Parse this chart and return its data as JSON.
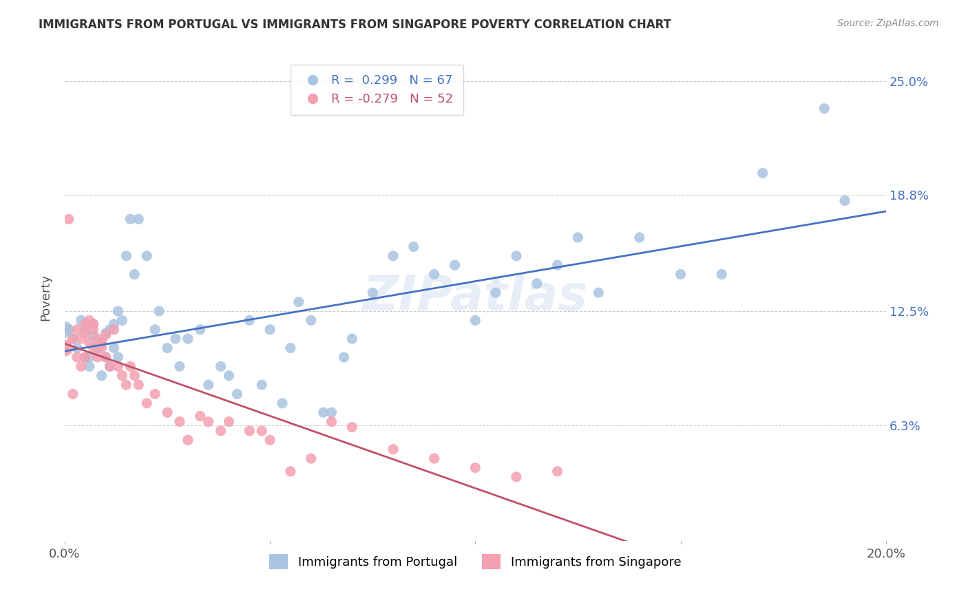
{
  "title": "IMMIGRANTS FROM PORTUGAL VS IMMIGRANTS FROM SINGAPORE POVERTY CORRELATION CHART",
  "source": "Source: ZipAtlas.com",
  "ylabel": "Poverty",
  "xlim": [
    0.0,
    0.2
  ],
  "ylim": [
    0.0,
    0.265
  ],
  "yticks": [
    0.063,
    0.125,
    0.188,
    0.25
  ],
  "ytick_labels": [
    "6.3%",
    "12.5%",
    "18.8%",
    "25.0%"
  ],
  "xticks": [
    0.0,
    0.05,
    0.1,
    0.15,
    0.2
  ],
  "xtick_labels": [
    "0.0%",
    "",
    "",
    "",
    "20.0%"
  ],
  "legend_r_portugal": "R =  0.299",
  "legend_n_portugal": "N = 67",
  "legend_r_singapore": "R = -0.279",
  "legend_n_singapore": "N = 52",
  "color_portugal": "#a8c4e0",
  "color_singapore": "#f4a0b0",
  "line_color_portugal": "#4472c4",
  "line_color_singapore": "#c0506a",
  "watermark": "ZIPatlas",
  "portugal_x": [
    0.0,
    0.002,
    0.003,
    0.004,
    0.005,
    0.005,
    0.006,
    0.006,
    0.007,
    0.007,
    0.008,
    0.009,
    0.009,
    0.01,
    0.01,
    0.011,
    0.011,
    0.012,
    0.012,
    0.013,
    0.013,
    0.014,
    0.015,
    0.016,
    0.017,
    0.018,
    0.02,
    0.022,
    0.023,
    0.025,
    0.027,
    0.028,
    0.03,
    0.033,
    0.035,
    0.038,
    0.04,
    0.042,
    0.045,
    0.048,
    0.05,
    0.053,
    0.055,
    0.057,
    0.06,
    0.063,
    0.065,
    0.068,
    0.07,
    0.075,
    0.08,
    0.085,
    0.09,
    0.095,
    0.1,
    0.105,
    0.11,
    0.115,
    0.12,
    0.125,
    0.13,
    0.14,
    0.15,
    0.16,
    0.17,
    0.185,
    0.19
  ],
  "portugal_y": [
    0.115,
    0.11,
    0.105,
    0.12,
    0.1,
    0.115,
    0.095,
    0.1,
    0.112,
    0.118,
    0.105,
    0.09,
    0.108,
    0.113,
    0.1,
    0.095,
    0.115,
    0.105,
    0.118,
    0.1,
    0.125,
    0.12,
    0.155,
    0.175,
    0.145,
    0.175,
    0.155,
    0.115,
    0.125,
    0.105,
    0.11,
    0.095,
    0.11,
    0.115,
    0.085,
    0.095,
    0.09,
    0.08,
    0.12,
    0.085,
    0.115,
    0.075,
    0.105,
    0.13,
    0.12,
    0.07,
    0.07,
    0.1,
    0.11,
    0.135,
    0.155,
    0.16,
    0.145,
    0.15,
    0.12,
    0.135,
    0.155,
    0.14,
    0.15,
    0.165,
    0.135,
    0.165,
    0.145,
    0.145,
    0.2,
    0.235,
    0.185
  ],
  "singapore_x": [
    0.0,
    0.001,
    0.001,
    0.002,
    0.002,
    0.003,
    0.003,
    0.004,
    0.004,
    0.005,
    0.005,
    0.005,
    0.006,
    0.006,
    0.007,
    0.007,
    0.007,
    0.008,
    0.008,
    0.009,
    0.009,
    0.01,
    0.01,
    0.011,
    0.012,
    0.013,
    0.014,
    0.015,
    0.016,
    0.017,
    0.018,
    0.02,
    0.022,
    0.025,
    0.028,
    0.03,
    0.033,
    0.035,
    0.038,
    0.04,
    0.045,
    0.048,
    0.05,
    0.055,
    0.06,
    0.065,
    0.07,
    0.08,
    0.09,
    0.1,
    0.11,
    0.12
  ],
  "singapore_y": [
    0.105,
    0.115,
    0.175,
    0.11,
    0.08,
    0.1,
    0.115,
    0.095,
    0.11,
    0.1,
    0.113,
    0.118,
    0.108,
    0.12,
    0.115,
    0.105,
    0.118,
    0.1,
    0.11,
    0.108,
    0.105,
    0.112,
    0.1,
    0.095,
    0.115,
    0.095,
    0.09,
    0.085,
    0.095,
    0.09,
    0.085,
    0.075,
    0.08,
    0.07,
    0.065,
    0.055,
    0.068,
    0.065,
    0.06,
    0.065,
    0.06,
    0.06,
    0.055,
    0.038,
    0.045,
    0.065,
    0.062,
    0.05,
    0.045,
    0.04,
    0.035,
    0.038
  ],
  "large_portugal_size": 300,
  "large_singapore_size": 300
}
